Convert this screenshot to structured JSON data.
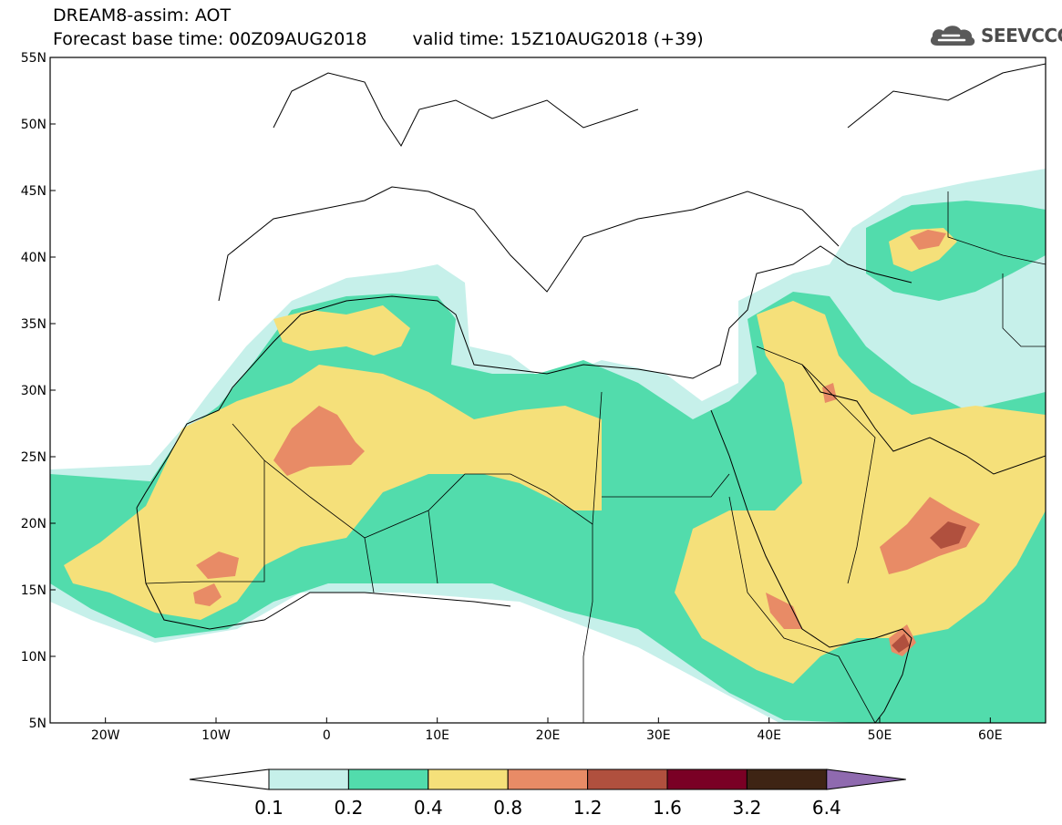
{
  "header": {
    "line1": "DREAM8-assim: AOT",
    "base_time": "Forecast base time: 00Z09AUG2018",
    "valid_time": "valid time: 15Z10AUG2018 (+39)"
  },
  "logo": {
    "icon": "cloud-icon",
    "text": "SEEVCCC"
  },
  "axes": {
    "lat_labels": [
      "55N",
      "50N",
      "45N",
      "40N",
      "35N",
      "30N",
      "25N",
      "20N",
      "15N",
      "10N",
      "5N"
    ],
    "lon_labels": [
      "20W",
      "10W",
      "0",
      "10E",
      "20E",
      "30E",
      "40E",
      "50E",
      "60E"
    ],
    "lat_range": [
      5,
      55
    ],
    "lon_range": [
      -25,
      65
    ]
  },
  "colorbar": {
    "levels": [
      "0.1",
      "0.2",
      "0.4",
      "0.8",
      "1.2",
      "1.6",
      "3.2",
      "6.4"
    ],
    "colors": [
      "#ffffff",
      "#c6f0ea",
      "#52dcac",
      "#f5e07a",
      "#e88b66",
      "#b0503e",
      "#7a0025",
      "#3e2414",
      "#8f6aaf"
    ]
  }
}
